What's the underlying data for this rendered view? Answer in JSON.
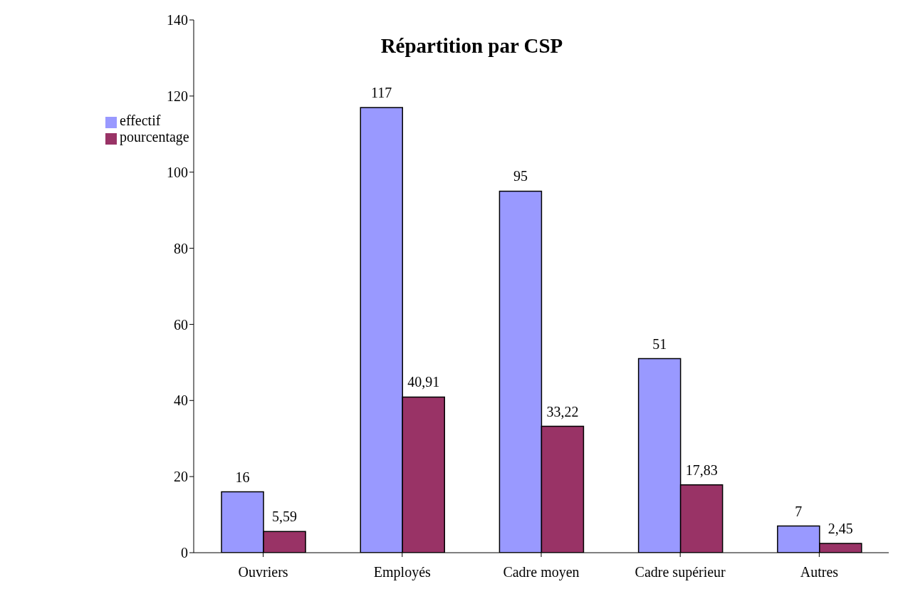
{
  "chart_data": {
    "type": "bar",
    "title": "Répartition par CSP",
    "categories": [
      "Ouvriers",
      "Employés",
      "Cadre moyen",
      "Cadre supérieur",
      "Autres"
    ],
    "series": [
      {
        "name": "effectif",
        "color": "#9999ff",
        "values": [
          16,
          117,
          95,
          51,
          7
        ],
        "value_labels": [
          "16",
          "117",
          "95",
          "51",
          "7"
        ]
      },
      {
        "name": "pourcentage",
        "color": "#993366",
        "values": [
          5.59,
          40.91,
          33.22,
          17.83,
          2.45
        ],
        "value_labels": [
          "5,59",
          "40,91",
          "33,22",
          "17,83",
          "2,45"
        ]
      }
    ],
    "ylim": [
      0,
      140
    ],
    "yticks": [
      0,
      20,
      40,
      60,
      80,
      100,
      120,
      140
    ],
    "grid": false,
    "legend": "top left"
  }
}
